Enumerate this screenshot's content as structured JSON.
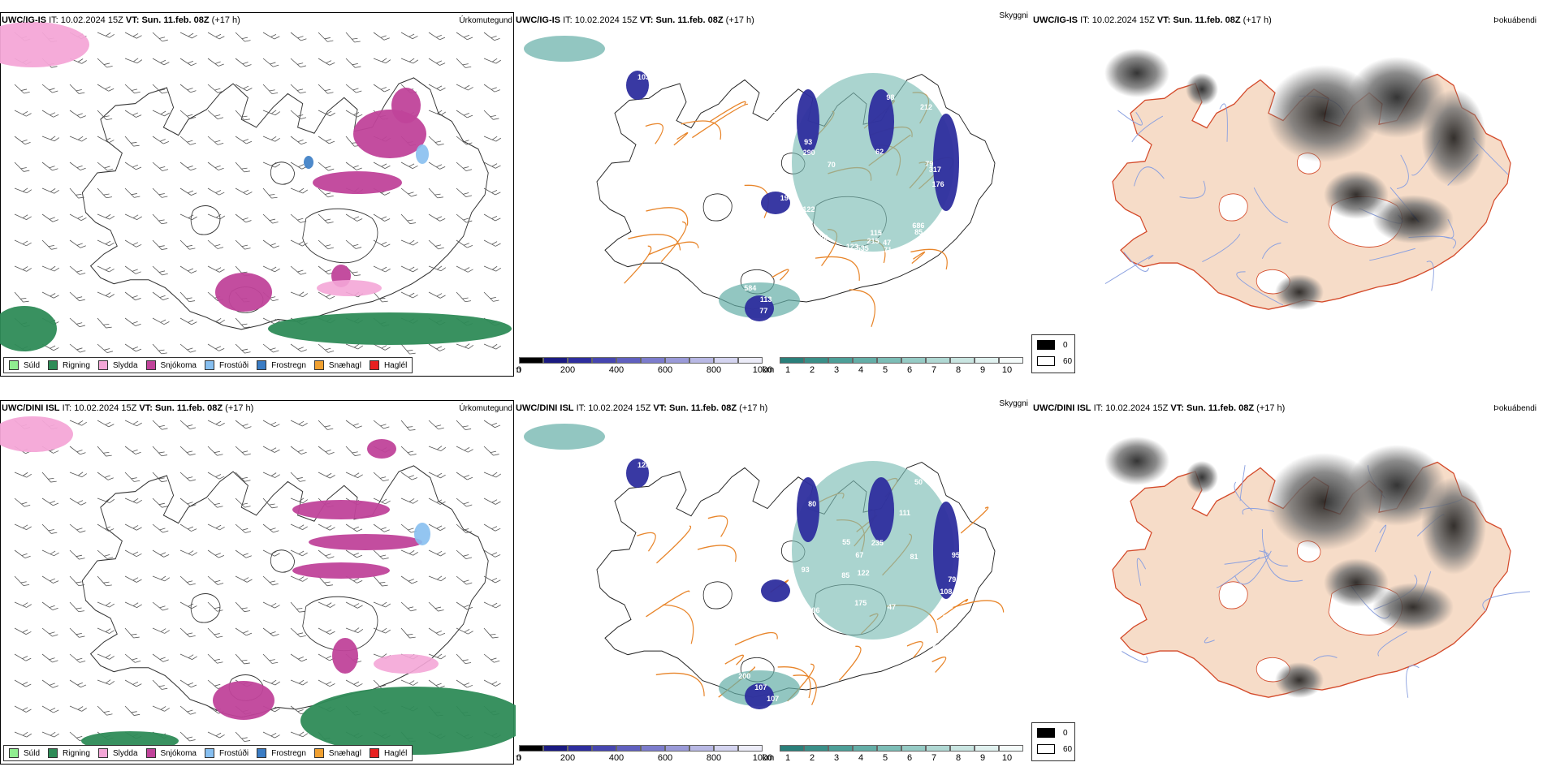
{
  "rows": [
    {
      "model": "UWC/IG-IS",
      "it_label": "IT:",
      "it_value": "10.02.2024 15Z",
      "vt_label": "VT:",
      "vt_value": "Sun. 11.feb. 08Z",
      "lead": "(+17 h)",
      "precip_title": "Úrkomutegund",
      "cloud_title": "Skyggni",
      "fog_title": "Þokuábendi",
      "cloud_labels": [
        "103",
        "123",
        "115",
        "62",
        "101",
        "142",
        "60",
        "215",
        "194",
        "79",
        "93",
        "122",
        "97",
        "535",
        "274",
        "212",
        "71",
        "686",
        "85",
        "90",
        "317",
        "78",
        "176",
        "290",
        "70",
        "47",
        "178",
        "98",
        "584",
        "113",
        "77"
      ]
    },
    {
      "model": "UWC/DINI ISL",
      "it_label": "IT:",
      "it_value": "10.02.2024 15Z",
      "vt_label": "VT:",
      "vt_value": "Sun. 11.feb. 08Z",
      "lead": "(+17 h)",
      "precip_title": "Úrkomutegund",
      "cloud_title": "Skyggni",
      "fog_title": "Þokuábendi",
      "cloud_labels": [
        "128",
        "235",
        "95",
        "85",
        "47",
        "55",
        "86",
        "80",
        "93",
        "42",
        "50",
        "111",
        "122",
        "175",
        "72",
        "96",
        "81",
        "79",
        "72",
        "108",
        "43",
        "67",
        "200",
        "107",
        "107"
      ]
    }
  ],
  "precip_legend": [
    {
      "label": "Súld",
      "color": "#90ee90"
    },
    {
      "label": "Rigning",
      "color": "#2e8b57"
    },
    {
      "label": "Slydda",
      "color": "#f4a6d7"
    },
    {
      "label": "Snjókoma",
      "color": "#c0439a"
    },
    {
      "label": "Frostúði",
      "color": "#87bff0"
    },
    {
      "label": "Frostregn",
      "color": "#3a7cc4"
    },
    {
      "label": "Snæhagl",
      "color": "#f0a030"
    },
    {
      "label": "Haglél",
      "color": "#e82020"
    }
  ],
  "cloudbase_scale": {
    "ticks": [
      "0",
      "200",
      "400",
      "600",
      "800",
      "1000"
    ],
    "unit": "m",
    "colors": [
      "#000000",
      "#1a1a80",
      "#2e2e9e",
      "#4646b0",
      "#6060bf",
      "#7c7ccc",
      "#9a9ad8",
      "#b8b8e4",
      "#d4d4f0",
      "#ececf8"
    ]
  },
  "visibility_scale": {
    "ticks": [
      "1",
      "2",
      "3",
      "4",
      "5",
      "6",
      "7",
      "8",
      "9",
      "10"
    ],
    "unit": "km",
    "colors": [
      "#2a7f7a",
      "#3a8f88",
      "#4d9f98",
      "#64aea7",
      "#7cbdb6",
      "#96cbc5",
      "#b0d8d3",
      "#c9e5e1",
      "#e0f1ef",
      "#f4fbfa"
    ]
  },
  "fog_legend": [
    {
      "value": "0",
      "color": "#000000"
    },
    {
      "value": "60",
      "color": "#ffffff"
    }
  ]
}
